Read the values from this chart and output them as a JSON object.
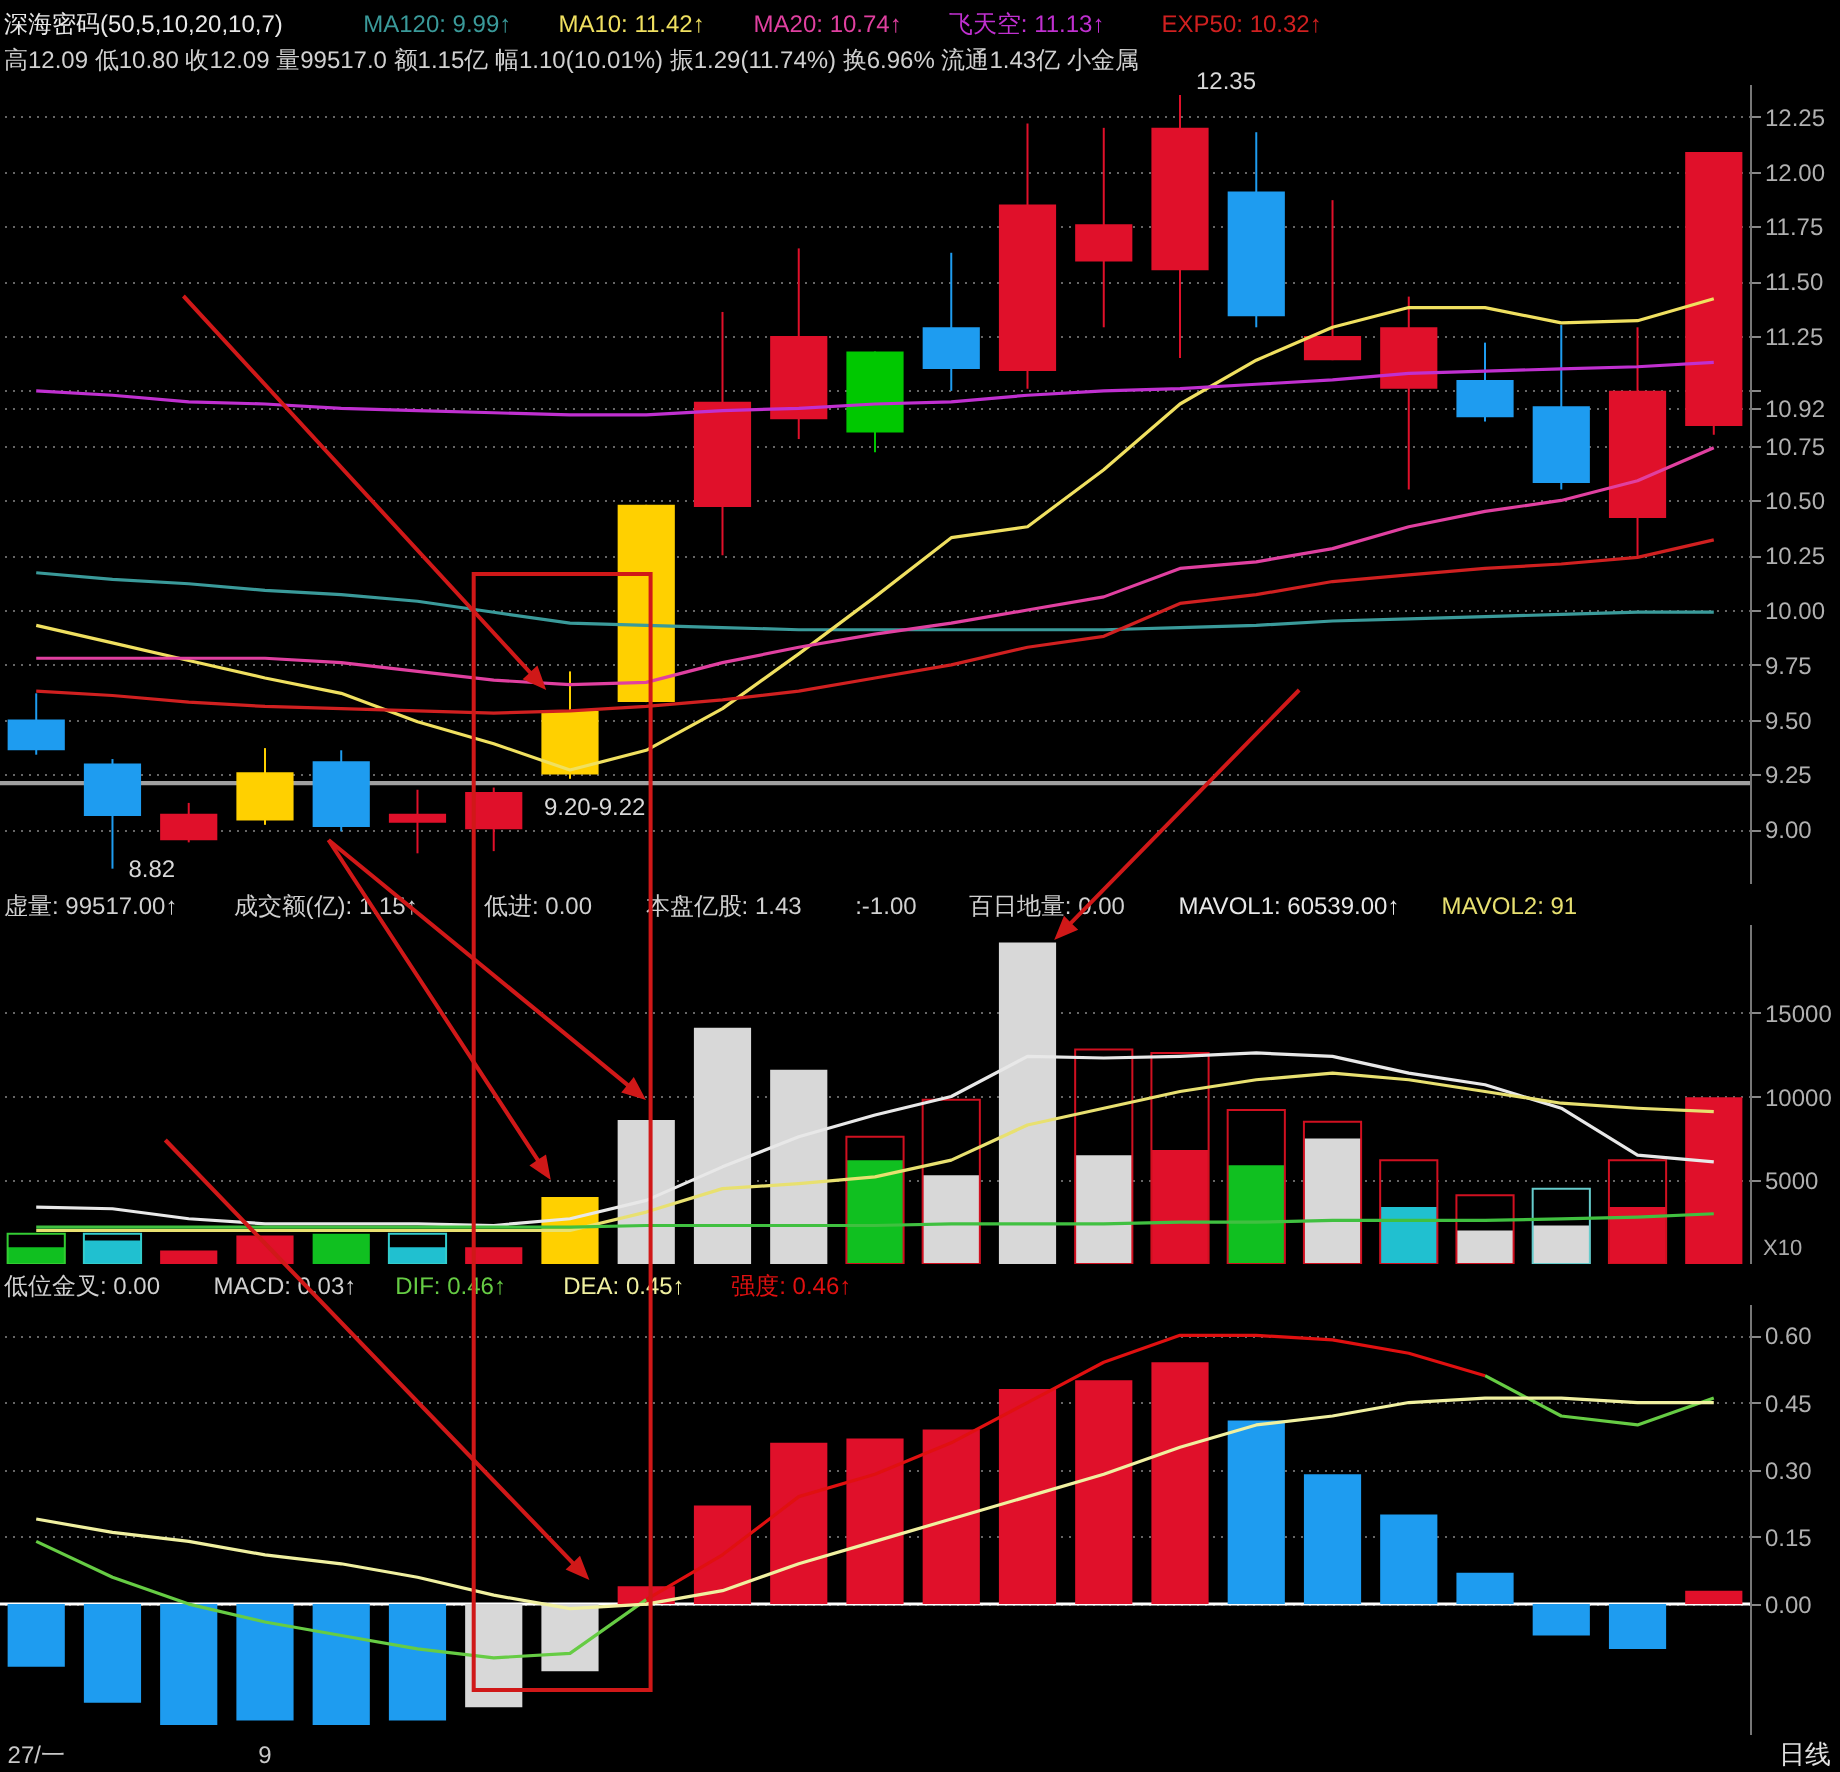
{
  "chart_data": [
    {
      "type": "candlestick",
      "title": "深海密码(50,5,10,20,10,7)",
      "subtitle": "高12.09 低10.80 收12.09 量99517.0 额1.15亿 幅1.10(10.01%) 振1.29(11.74%) 换6.96% 流通1.43亿 小金属",
      "categories": [
        null,
        null,
        null,
        null,
        null,
        null,
        null,
        null,
        null,
        null,
        null,
        null,
        null,
        null,
        null,
        null,
        null,
        null,
        null,
        null,
        null,
        null,
        null
      ],
      "ohlc": [
        [
          9.5,
          9.62,
          9.34,
          9.36
        ],
        [
          9.3,
          9.32,
          8.82,
          9.06
        ],
        [
          8.95,
          9.12,
          8.94,
          9.07
        ],
        [
          9.04,
          9.37,
          9.02,
          9.26
        ],
        [
          9.31,
          9.36,
          8.99,
          9.01
        ],
        [
          9.03,
          9.18,
          8.89,
          9.07
        ],
        [
          9.0,
          9.19,
          8.9,
          9.17
        ],
        [
          9.25,
          9.72,
          9.23,
          9.54
        ],
        [
          9.58,
          10.48,
          9.58,
          10.48
        ],
        [
          10.47,
          11.36,
          10.25,
          10.95
        ],
        [
          10.87,
          11.65,
          10.78,
          11.25
        ],
        [
          11.18,
          11.18,
          10.72,
          10.81
        ],
        [
          11.29,
          11.63,
          11.0,
          11.1
        ],
        [
          11.09,
          12.22,
          11.01,
          11.85
        ],
        [
          11.59,
          12.2,
          11.29,
          11.76
        ],
        [
          11.55,
          12.35,
          11.15,
          12.2
        ],
        [
          11.91,
          12.18,
          11.29,
          11.34
        ],
        [
          11.14,
          11.87,
          11.14,
          11.25
        ],
        [
          11.01,
          11.43,
          10.55,
          11.29
        ],
        [
          11.05,
          11.22,
          10.86,
          10.88
        ],
        [
          10.93,
          11.3,
          10.55,
          10.58
        ],
        [
          10.42,
          11.29,
          10.24,
          11.0
        ],
        [
          10.84,
          12.09,
          10.8,
          12.09
        ]
      ],
      "colors": [
        "#1e9cf0",
        "#1e9cf0",
        "#e0102a",
        "#ffd000",
        "#1e9cf0",
        "#e0102a",
        "#e0102a",
        "#ffd000",
        "#ffd000",
        "#e0102a",
        "#e0102a",
        "#00c800",
        "#1e9cf0",
        "#e0102a",
        "#e0102a",
        "#e0102a",
        "#1e9cf0",
        "#e0102a",
        "#e0102a",
        "#1e9cf0",
        "#1e9cf0",
        "#e0102a",
        "#e0102a"
      ],
      "series": [
        {
          "type": "line",
          "name": "MA120: 9.99↑",
          "color": "#3a9a9a",
          "values": [
            10.17,
            10.14,
            10.12,
            10.09,
            10.07,
            10.04,
            9.99,
            9.94,
            9.93,
            9.92,
            9.91,
            9.91,
            9.91,
            9.91,
            9.91,
            9.92,
            9.93,
            9.95,
            9.96,
            9.97,
            9.98,
            9.99,
            9.99
          ]
        },
        {
          "type": "line",
          "name": "MA10: 11.42↑",
          "color": "#f0e060",
          "values": [
            9.93,
            9.85,
            9.77,
            9.69,
            9.62,
            9.49,
            9.39,
            9.27,
            9.36,
            9.55,
            9.8,
            10.06,
            10.33,
            10.38,
            10.64,
            10.94,
            11.14,
            11.29,
            11.38,
            11.38,
            11.31,
            11.32,
            11.42
          ]
        },
        {
          "type": "line",
          "name": "MA20: 10.74↑",
          "color": "#e040a0",
          "values": [
            9.78,
            9.78,
            9.78,
            9.78,
            9.76,
            9.72,
            9.68,
            9.66,
            9.67,
            9.76,
            9.83,
            9.89,
            9.94,
            10.0,
            10.06,
            10.19,
            10.22,
            10.28,
            10.38,
            10.45,
            10.5,
            10.59,
            10.74
          ]
        },
        {
          "type": "line",
          "name": "飞天空: 11.13↑",
          "color": "#c030d0",
          "values": [
            11.0,
            10.98,
            10.95,
            10.94,
            10.92,
            10.91,
            10.9,
            10.89,
            10.89,
            10.91,
            10.92,
            10.94,
            10.95,
            10.98,
            11.0,
            11.01,
            11.03,
            11.05,
            11.08,
            11.09,
            11.1,
            11.11,
            11.13
          ]
        },
        {
          "type": "line",
          "name": "EXP50: 10.32↑",
          "color": "#d02020",
          "values": [
            9.63,
            9.61,
            9.58,
            9.56,
            9.55,
            9.54,
            9.53,
            9.54,
            9.56,
            9.59,
            9.63,
            9.69,
            9.75,
            9.83,
            9.88,
            10.03,
            10.07,
            10.13,
            10.16,
            10.19,
            10.21,
            10.24,
            10.32
          ]
        }
      ],
      "ylim": [
        8.75,
        12.4
      ],
      "yticks": [
        {
          "value": 9,
          "label": "9.00"
        },
        {
          "value": 9.25,
          "label": "9.25"
        },
        {
          "value": 9.5,
          "label": "9.50"
        },
        {
          "value": 9.75,
          "label": "9.75"
        },
        {
          "value": 10,
          "label": "10.00"
        },
        {
          "value": 10.25,
          "label": "10.25"
        },
        {
          "value": 10.5,
          "label": "10.50"
        },
        {
          "value": 10.75,
          "label": "10.75"
        },
        {
          "value": 10.92,
          "label": "10.92"
        },
        {
          "value": 11,
          "label": null
        },
        {
          "value": 11.25,
          "label": "11.25"
        },
        {
          "value": 11.5,
          "label": "11.50"
        },
        {
          "value": 11.75,
          "label": "11.75"
        },
        {
          "value": 12,
          "label": "12.00"
        },
        {
          "value": 12.25,
          "label": "12.25"
        }
      ],
      "grid": "y",
      "tick_labels": "y",
      "annotations": [
        "12.35",
        "8.82"
      ],
      "bands": [
        {
          "axis": "y",
          "from": 9.2,
          "to": 9.22,
          "label": "9.20-9.22",
          "color": "#a0a0a0"
        }
      ]
    },
    {
      "type": "bar",
      "categories": [
        null,
        null,
        null,
        null,
        null,
        null,
        null,
        null,
        null,
        null,
        null,
        null,
        null,
        null,
        null,
        null,
        null,
        null,
        null,
        null,
        null,
        null,
        null
      ],
      "series": [
        {
          "values": [
            1000,
            1400,
            800,
            1700,
            1800,
            1000,
            1000,
            4000,
            8600,
            14100,
            11600,
            6200,
            5300,
            19200,
            6500,
            6800,
            5900,
            7500,
            3400,
            2000,
            2300,
            3400,
            9950
          ],
          "colors": [
            "#10c020",
            "#20c0d0",
            "#e0102a",
            "#e0102a",
            "#10c020",
            "#20c0d0",
            "#e0102a",
            "#ffd000",
            "#d8d8d8",
            "#d8d8d8",
            "#d8d8d8",
            "#10c020",
            "#d8d8d8",
            "#d8d8d8",
            "#d8d8d8",
            "#e0102a",
            "#10c020",
            "#d8d8d8",
            "#20c0d0",
            "#d8d8d8",
            "#d8d8d8",
            "#e0102a",
            "#e0102a"
          ]
        },
        {
          "values": [
            1800,
            1800,
            null,
            null,
            null,
            1800,
            null,
            null,
            null,
            null,
            null,
            7600,
            9800,
            null,
            12800,
            12600,
            9200,
            8500,
            6200,
            4100,
            4500,
            6200,
            null
          ],
          "colors": [
            "#33cc33",
            "#33cccc",
            null,
            null,
            null,
            "#33cccc",
            null,
            null,
            null,
            null,
            null,
            "#d01020",
            "#d01020",
            null,
            "#d01020",
            "#d01020",
            "#d01020",
            "#d01020",
            "#d01020",
            "#d01020",
            "#66cccc",
            "#d01020",
            null
          ]
        },
        {
          "type": "line",
          "name": "MAVOL1: 60539.00↑",
          "color": "#e8e8e8",
          "values": [
            3400,
            3300,
            2700,
            2400,
            2400,
            2400,
            2300,
            2700,
            3800,
            5800,
            7600,
            8900,
            10000,
            12400,
            12300,
            12400,
            12600,
            12400,
            11400,
            10700,
            9300,
            6500,
            6100
          ]
        },
        {
          "type": "line",
          "name": "MAVOL2: 91",
          "color": "#e8e070",
          "values": [
            2000,
            2000,
            2000,
            2000,
            2000,
            2000,
            2000,
            2000,
            3100,
            4500,
            4800,
            5200,
            6200,
            8300,
            9300,
            10300,
            11000,
            11400,
            11000,
            10300,
            9600,
            9300,
            9100
          ]
        },
        {
          "type": "line",
          "color": "#40c040",
          "values": [
            2200,
            2200,
            2200,
            2200,
            2200,
            2200,
            2200,
            2200,
            2300,
            2300,
            2300,
            2300,
            2400,
            2400,
            2400,
            2500,
            2500,
            2600,
            2600,
            2600,
            2700,
            2800,
            3000
          ]
        }
      ],
      "ylim": [
        0,
        20300
      ],
      "yticks": [
        5000,
        10000,
        15000
      ],
      "ylabel": "X10",
      "grid": "y",
      "tick_labels": "y",
      "annotations": [
        "虚量: 99517.00↑",
        "成交额(亿): 1.15↑",
        "低进: 0.00",
        "本盘亿股: 1.43",
        ":-1.00",
        "百日地量: 0.00"
      ]
    },
    {
      "type": "bar",
      "xlabel": "日线",
      "categories": [
        "27/一",
        null,
        null,
        "9",
        null,
        null,
        null,
        null,
        null,
        null,
        null,
        null,
        null,
        null,
        null,
        null,
        null,
        null,
        null,
        null,
        null,
        null,
        null
      ],
      "series": [
        {
          "values": [
            -0.14,
            -0.22,
            -0.27,
            -0.26,
            -0.27,
            -0.26,
            -0.23,
            -0.15,
            0.04,
            0.22,
            0.36,
            0.37,
            0.39,
            0.48,
            0.5,
            0.54,
            0.41,
            0.29,
            0.2,
            0.07,
            -0.07,
            -0.1,
            0.03
          ],
          "colors": [
            "#1e9cf0",
            "#1e9cf0",
            "#1e9cf0",
            "#1e9cf0",
            "#1e9cf0",
            "#1e9cf0",
            "#d8d8d8",
            "#d8d8d8",
            "#e0102a",
            "#e0102a",
            "#e0102a",
            "#e0102a",
            "#e0102a",
            "#e0102a",
            "#e0102a",
            "#e0102a",
            "#1e9cf0",
            "#1e9cf0",
            "#1e9cf0",
            "#1e9cf0",
            "#1e9cf0",
            "#1e9cf0",
            "#e0102a"
          ]
        },
        {
          "type": "line",
          "name": "DIF: 0.46↑",
          "color": "#66cc44",
          "values": [
            0.14,
            0.06,
            0.0,
            -0.04,
            -0.07,
            -0.1,
            -0.12,
            -0.11,
            0.01,
            null,
            null,
            null,
            null,
            null,
            null,
            null,
            null,
            null,
            null,
            0.51,
            0.42,
            0.4,
            0.46
          ]
        },
        {
          "type": "line",
          "name": "DEA: 0.45↑",
          "color": "#f0f0a0",
          "values": [
            0.19,
            0.16,
            0.14,
            0.11,
            0.09,
            0.06,
            0.02,
            -0.01,
            0.0,
            0.03,
            0.09,
            0.14,
            0.19,
            0.24,
            0.29,
            0.35,
            0.4,
            0.42,
            0.45,
            0.46,
            0.46,
            0.45,
            0.45
          ]
        },
        {
          "type": "line",
          "name": "强度: 0.46↑",
          "color": "#e01010",
          "values": [
            null,
            null,
            null,
            null,
            null,
            null,
            null,
            null,
            0.01,
            0.11,
            0.24,
            0.29,
            0.36,
            0.45,
            0.54,
            0.6,
            0.6,
            0.59,
            0.56,
            0.51,
            null,
            null,
            null
          ]
        }
      ],
      "ylim": [
        -0.29,
        0.67
      ],
      "yticks": [
        {
          "value": 0,
          "label": "0.00"
        },
        {
          "value": 0.15,
          "label": "0.15"
        },
        {
          "value": 0.3,
          "label": "0.30"
        },
        {
          "value": 0.45,
          "label": "0.45"
        },
        {
          "value": 0.6,
          "label": "0.60"
        }
      ],
      "grid": "y",
      "annotations": [
        "低位金叉: 0.00",
        "MACD: 0.03↑"
      ],
      "ref_lines": [
        {
          "axis": "y",
          "value": 0,
          "color": "#ffffff"
        }
      ]
    }
  ]
}
